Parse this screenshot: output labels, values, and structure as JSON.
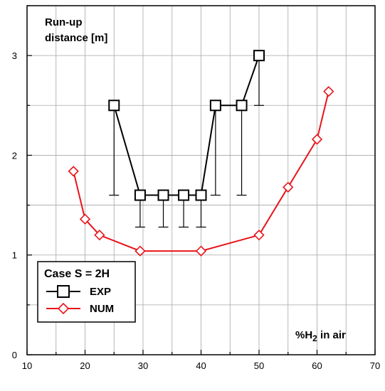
{
  "chart_data": {
    "type": "line",
    "xlabel": "%H2 in air",
    "xlabel_main": "%H",
    "xlabel_sub": "2",
    "xlabel_rest": " in air",
    "ylabel_line1": "Run-up",
    "ylabel_line2": "distance [m]",
    "xlim": [
      10,
      70
    ],
    "ylim": [
      0,
      3.5
    ],
    "xticks": [
      10,
      20,
      30,
      40,
      50,
      60,
      70
    ],
    "yticks": [
      0,
      1,
      2,
      3
    ],
    "grid": true,
    "legend": {
      "title": "Case S = 2H",
      "placement": "lower-left",
      "entries": [
        "EXP",
        "NUM"
      ]
    },
    "series": [
      {
        "name": "EXP",
        "color": "#000000",
        "marker": "square",
        "x": [
          25,
          29.5,
          33.5,
          37,
          40,
          42.5,
          47,
          50
        ],
        "y": [
          2.5,
          1.6,
          1.6,
          1.6,
          1.6,
          2.5,
          2.5,
          3.0
        ],
        "error_lower": [
          1.6,
          1.28,
          1.28,
          1.28,
          1.28,
          1.6,
          1.6,
          2.5
        ]
      },
      {
        "name": "NUM",
        "color": "#e8141b",
        "marker": "diamond",
        "x": [
          18,
          20,
          22.5,
          29.5,
          40,
          50,
          55,
          60,
          62
        ],
        "y": [
          1.84,
          1.36,
          1.2,
          1.04,
          1.04,
          1.2,
          1.68,
          2.16,
          2.64
        ]
      }
    ]
  }
}
